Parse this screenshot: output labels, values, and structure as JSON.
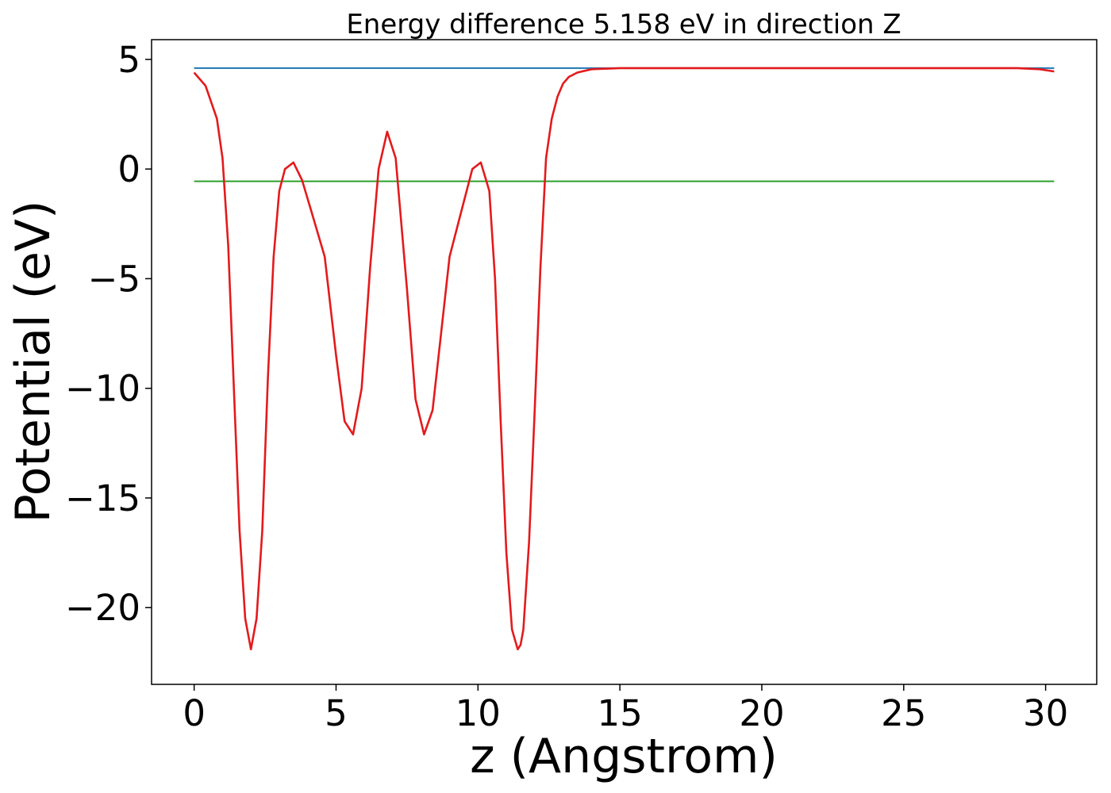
{
  "chart_data": {
    "type": "line",
    "title": "Energy difference 5.158 eV in direction Z",
    "xlabel": "z (Angstrom)",
    "ylabel": "Potential (eV)",
    "xlim": [
      -1.5,
      31.8
    ],
    "ylim": [
      -23.5,
      5.9
    ],
    "grid": false,
    "x_ticks": [
      0,
      5,
      10,
      15,
      20,
      25,
      30
    ],
    "x_tick_labels": [
      "0",
      "5",
      "10",
      "15",
      "20",
      "25",
      "30"
    ],
    "y_ticks": [
      5,
      0,
      -5,
      -10,
      -15,
      -20
    ],
    "y_tick_labels": [
      "5",
      "0",
      "−5",
      "−10",
      "−15",
      "−20"
    ],
    "series": [
      {
        "color": "#1f77b4",
        "x": [
          0,
          30.3
        ],
        "y": [
          4.6,
          4.6
        ]
      },
      {
        "color": "#2ca02c",
        "x": [
          0,
          30.3
        ],
        "y": [
          -0.56,
          -0.56
        ]
      },
      {
        "color": "#e41a1c",
        "x": [
          0,
          0.4,
          0.8,
          1.0,
          1.2,
          1.4,
          1.6,
          1.8,
          2.0,
          2.2,
          2.4,
          2.6,
          2.8,
          3.0,
          3.2,
          3.5,
          3.8,
          4.1,
          4.6,
          5.0,
          5.3,
          5.6,
          5.9,
          6.2,
          6.5,
          6.8,
          7.1,
          7.5,
          7.8,
          8.1,
          8.4,
          8.7,
          9.0,
          9.4,
          9.8,
          10.1,
          10.4,
          10.6,
          10.8,
          11.0,
          11.2,
          11.4,
          11.5,
          11.6,
          11.8,
          12.0,
          12.2,
          12.4,
          12.6,
          12.8,
          13.0,
          13.2,
          13.5,
          14.0,
          15.0,
          20.0,
          25.0,
          29.0,
          29.8,
          30.3
        ],
        "y": [
          4.4,
          3.8,
          2.3,
          0.5,
          -3.5,
          -10.0,
          -16.5,
          -20.5,
          -21.9,
          -20.5,
          -16.5,
          -9.5,
          -4.0,
          -1.0,
          0.0,
          0.3,
          -0.5,
          -1.8,
          -4.0,
          -8.5,
          -11.5,
          -12.1,
          -10.0,
          -4.5,
          0.0,
          1.7,
          0.5,
          -5.5,
          -10.5,
          -12.1,
          -11.0,
          -7.5,
          -4.0,
          -2.0,
          0.0,
          0.3,
          -1.0,
          -5.0,
          -11.5,
          -17.5,
          -21.0,
          -21.9,
          -21.7,
          -21.0,
          -17.0,
          -11.0,
          -4.5,
          0.5,
          2.3,
          3.3,
          3.9,
          4.2,
          4.4,
          4.55,
          4.6,
          4.6,
          4.6,
          4.6,
          4.55,
          4.45
        ]
      }
    ]
  }
}
